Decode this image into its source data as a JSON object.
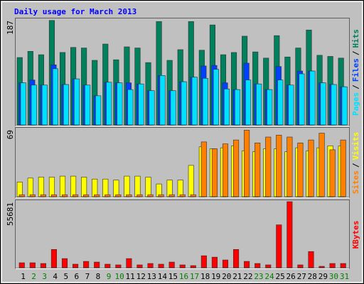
{
  "chart_data": [
    {
      "type": "bar",
      "title": "Daily usage for March 2013",
      "ylim": [
        0,
        187
      ],
      "yticks": [
        187
      ],
      "legend_separator": "/",
      "series": [
        {
          "name": "Hits",
          "color": "#00805c",
          "values": [
            120,
            131,
            125,
            186,
            129,
            138,
            137,
            115,
            144,
            116,
            139,
            137,
            111,
            184,
            115,
            134,
            184,
            133,
            178,
            125,
            129,
            158,
            130,
            119,
            159,
            121,
            137,
            169,
            124,
            122,
            119
          ]
        },
        {
          "name": "Files",
          "color": "#0040ff",
          "values": [
            75,
            80,
            71,
            107,
            72,
            82,
            71,
            52,
            76,
            75,
            75,
            73,
            61,
            88,
            61,
            77,
            85,
            105,
            106,
            75,
            63,
            110,
            73,
            63,
            104,
            71,
            96,
            96,
            75,
            72,
            68
          ]
        },
        {
          "name": "Pages",
          "color": "#00e0ff",
          "values": [
            75,
            71,
            71,
            100,
            72,
            82,
            71,
            52,
            76,
            75,
            63,
            73,
            61,
            88,
            61,
            77,
            85,
            83,
            99,
            64,
            63,
            80,
            73,
            63,
            80,
            71,
            91,
            96,
            75,
            72,
            68
          ]
        }
      ]
    },
    {
      "type": "bar",
      "ylim": [
        0,
        69
      ],
      "yticks": [
        69
      ],
      "legend_separator": "/",
      "series": [
        {
          "name": "Visits",
          "color": "#ffff00",
          "values": [
            15,
            19,
            20,
            20,
            21,
            21,
            20,
            18,
            18,
            17,
            21,
            21,
            20,
            13,
            17,
            17,
            32,
            51,
            49,
            50,
            52,
            47,
            46,
            49,
            49,
            46,
            50,
            47,
            50,
            52,
            52
          ]
        },
        {
          "name": "Sites",
          "color": "#ff8000",
          "values": [
            2,
            2,
            2,
            2,
            2,
            2,
            2,
            2,
            2,
            2,
            2,
            2,
            2,
            2,
            2,
            2,
            2,
            56,
            49,
            54,
            58,
            68,
            55,
            61,
            63,
            61,
            55,
            58,
            65,
            48,
            58
          ]
        }
      ]
    },
    {
      "type": "bar",
      "ylim": [
        0,
        55681
      ],
      "yticks": [
        55681
      ],
      "categories": [
        "1",
        "2",
        "3",
        "4",
        "5",
        "6",
        "7",
        "8",
        "9",
        "10",
        "11",
        "12",
        "13",
        "14",
        "15",
        "16",
        "17",
        "18",
        "19",
        "20",
        "21",
        "22",
        "23",
        "24",
        "25",
        "26",
        "27",
        "28",
        "29",
        "30",
        "31"
      ],
      "category_colors": [
        "#000",
        "#008000",
        "#008000",
        "#000",
        "#000",
        "#000",
        "#000",
        "#000",
        "#008000",
        "#008000",
        "#000",
        "#000",
        "#000",
        "#000",
        "#000",
        "#008000",
        "#008000",
        "#000",
        "#000",
        "#000",
        "#000",
        "#000",
        "#008000",
        "#008000",
        "#000",
        "#000",
        "#000",
        "#000",
        "#000",
        "#008000",
        "#008000"
      ],
      "series": [
        {
          "name": "KBytes",
          "color": "#ff0000",
          "values": [
            4146,
            4146,
            3554,
            15401,
            7701,
            2962,
            5331,
            4739,
            2962,
            2369,
            7701,
            2369,
            3554,
            2962,
            4739,
            2369,
            1777,
            10070,
            8885,
            6516,
            15401,
            5331,
            3554,
            2369,
            36134,
            55681,
            2369,
            13624,
            1185,
            3554,
            3554
          ]
        }
      ]
    }
  ]
}
